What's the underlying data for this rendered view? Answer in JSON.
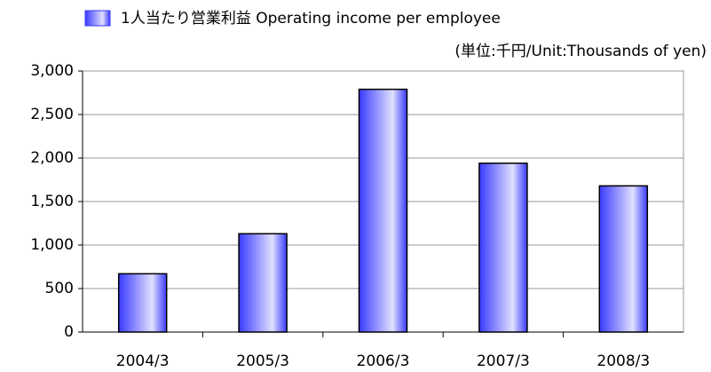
{
  "chart_data": {
    "type": "bar",
    "unit_note": "(単位:千円/Unit:Thousands of yen)",
    "categories": [
      "2004/3",
      "2005/3",
      "2006/3",
      "2007/3",
      "2008/3"
    ],
    "series": [
      {
        "name": "1人当たり営業利益  Operating income per employee",
        "color": "#3a3aff",
        "values": [
          670,
          1130,
          2790,
          1940,
          1680
        ]
      }
    ],
    "ylim": [
      0,
      3000
    ],
    "yticks": [
      0,
      500,
      {
        "value": 1000,
        "label": "1,000"
      },
      {
        "value": 1500,
        "label": "1,500"
      },
      {
        "value": 2000,
        "label": "2,000"
      },
      {
        "value": 2500,
        "label": "2,500"
      },
      {
        "value": 3000,
        "label": "3,000"
      }
    ],
    "grid": true,
    "legend": "top"
  }
}
